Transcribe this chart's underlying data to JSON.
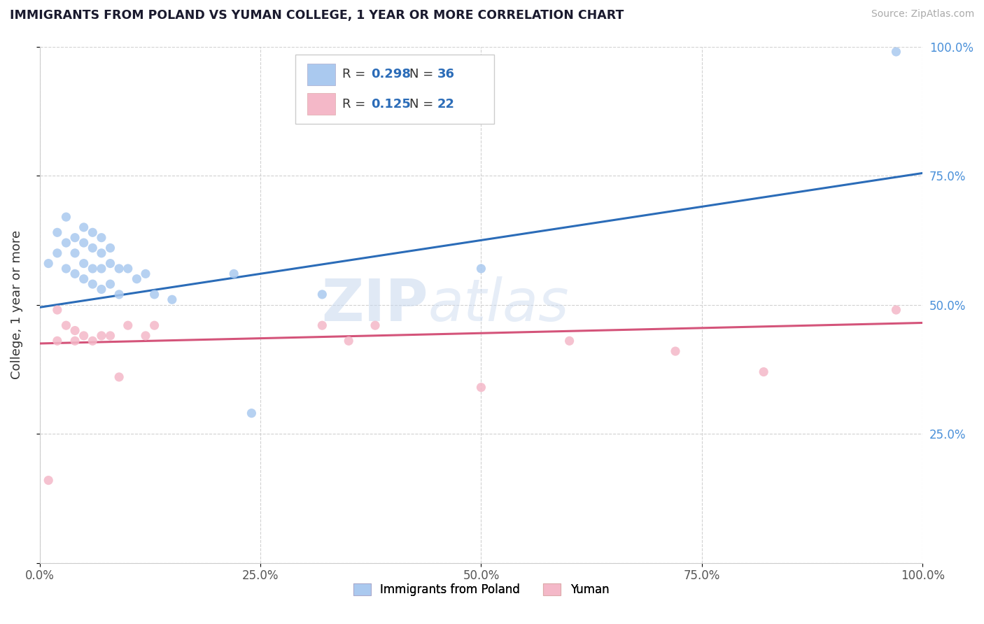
{
  "title": "IMMIGRANTS FROM POLAND VS YUMAN COLLEGE, 1 YEAR OR MORE CORRELATION CHART",
  "source": "Source: ZipAtlas.com",
  "ylabel": "College, 1 year or more",
  "xlim": [
    0.0,
    1.0
  ],
  "ylim": [
    0.0,
    1.0
  ],
  "xticks": [
    0.0,
    0.25,
    0.5,
    0.75,
    1.0
  ],
  "yticks": [
    0.0,
    0.25,
    0.5,
    0.75,
    1.0
  ],
  "xticklabels": [
    "0.0%",
    "25.0%",
    "50.0%",
    "75.0%",
    "100.0%"
  ],
  "yticklabels_right": [
    "",
    "25.0%",
    "50.0%",
    "75.0%",
    "100.0%"
  ],
  "legend_series": [
    "Immigrants from Poland",
    "Yuman"
  ],
  "R_blue": 0.298,
  "N_blue": 36,
  "R_pink": 0.125,
  "N_pink": 22,
  "blue_scatter_color": "#aac9ef",
  "pink_scatter_color": "#f4b8c8",
  "line_blue": "#2b6cb8",
  "line_pink": "#d4547a",
  "watermark": "ZIPatlas",
  "blue_scatter_x": [
    0.01,
    0.02,
    0.02,
    0.03,
    0.03,
    0.03,
    0.04,
    0.04,
    0.04,
    0.05,
    0.05,
    0.05,
    0.05,
    0.06,
    0.06,
    0.06,
    0.06,
    0.07,
    0.07,
    0.07,
    0.07,
    0.08,
    0.08,
    0.08,
    0.09,
    0.09,
    0.1,
    0.11,
    0.12,
    0.13,
    0.15,
    0.22,
    0.24,
    0.32,
    0.5,
    0.97
  ],
  "blue_scatter_y": [
    0.58,
    0.64,
    0.6,
    0.67,
    0.62,
    0.57,
    0.63,
    0.6,
    0.56,
    0.65,
    0.62,
    0.58,
    0.55,
    0.64,
    0.61,
    0.57,
    0.54,
    0.63,
    0.6,
    0.57,
    0.53,
    0.61,
    0.58,
    0.54,
    0.57,
    0.52,
    0.57,
    0.55,
    0.56,
    0.52,
    0.51,
    0.56,
    0.29,
    0.52,
    0.57,
    0.99
  ],
  "pink_scatter_x": [
    0.01,
    0.02,
    0.03,
    0.04,
    0.04,
    0.05,
    0.06,
    0.07,
    0.08,
    0.09,
    0.1,
    0.12,
    0.13,
    0.32,
    0.35,
    0.38,
    0.5,
    0.6,
    0.72,
    0.82,
    0.97,
    0.02
  ],
  "pink_scatter_y": [
    0.16,
    0.49,
    0.46,
    0.45,
    0.43,
    0.44,
    0.43,
    0.44,
    0.44,
    0.36,
    0.46,
    0.44,
    0.46,
    0.46,
    0.43,
    0.46,
    0.34,
    0.43,
    0.41,
    0.37,
    0.49,
    0.43
  ],
  "blue_line_x0": 0.0,
  "blue_line_y0": 0.495,
  "blue_line_x1": 1.0,
  "blue_line_y1": 0.755,
  "pink_line_x0": 0.0,
  "pink_line_y0": 0.425,
  "pink_line_x1": 1.0,
  "pink_line_y1": 0.465
}
